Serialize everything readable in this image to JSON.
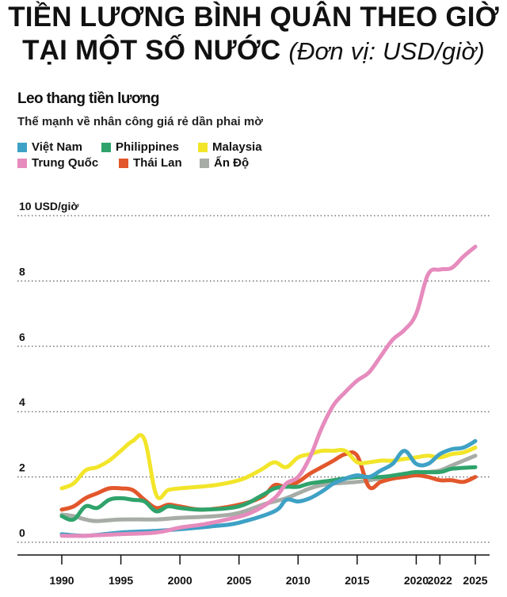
{
  "header": {
    "title_line1": "TIỀN LƯƠNG BÌNH QUÂN THEO GIỜ",
    "title_line2": "TẠI MỘT SỐ NƯỚC",
    "title_unit": "(Đơn vị: USD/giờ)"
  },
  "subtitle": "Leo thang tiền lương",
  "caption": "Thế mạnh về nhân công giá rẻ dần phai mờ",
  "chart_data": {
    "type": "line",
    "title": "Leo thang tiền lương",
    "subtitle": "Thế mạnh về nhân công giá rẻ dần phai mờ",
    "ylabel": "10 USD/giờ",
    "ylim": [
      0,
      10
    ],
    "xlim": [
      1990,
      2025
    ],
    "x_ticks": [
      "1990",
      "1995",
      "2000",
      "2005",
      "2010",
      "2015",
      "2020",
      "2022",
      "2025"
    ],
    "y_ticks": [
      "10 USD/giờ",
      "8",
      "6",
      "4",
      "2",
      "0"
    ],
    "grid": "horizontal dotted",
    "legend_position": "top-left",
    "series": [
      {
        "name": "Việt Nam",
        "color": "#3ea1c5",
        "x": [
          1990,
          1992,
          1995,
          1998,
          2000,
          2003,
          2005,
          2008,
          2009,
          2010,
          2011,
          2012,
          2013,
          2014,
          2015,
          2016,
          2017,
          2018,
          2019,
          2020,
          2021,
          2022,
          2023,
          2024,
          2025
        ],
        "y": [
          0.25,
          0.2,
          0.3,
          0.35,
          0.4,
          0.5,
          0.6,
          0.95,
          1.3,
          1.25,
          1.35,
          1.55,
          1.8,
          1.95,
          2.05,
          2.0,
          2.2,
          2.4,
          2.8,
          2.4,
          2.4,
          2.7,
          2.85,
          2.9,
          3.1
        ]
      },
      {
        "name": "Philippines",
        "color": "#2fa36b",
        "x": [
          1990,
          1991,
          1992,
          1993,
          1994,
          1995,
          1996,
          1997,
          1998,
          1999,
          2000,
          2002,
          2005,
          2007,
          2008,
          2009,
          2010,
          2011,
          2013,
          2015,
          2017,
          2019,
          2020,
          2022,
          2023,
          2025
        ],
        "y": [
          0.8,
          0.7,
          1.1,
          1.05,
          1.3,
          1.35,
          1.3,
          1.25,
          0.95,
          1.1,
          1.05,
          1.0,
          1.1,
          1.45,
          1.65,
          1.7,
          1.7,
          1.8,
          1.9,
          2.0,
          2.0,
          2.1,
          2.15,
          2.15,
          2.25,
          2.3
        ]
      },
      {
        "name": "Malaysia",
        "color": "#f2e52a",
        "x": [
          1990,
          1991,
          1992,
          1993,
          1994,
          1995,
          1996,
          1997,
          1998,
          1999,
          2000,
          2003,
          2005,
          2006,
          2007,
          2008,
          2009,
          2010,
          2011,
          2012,
          2013,
          2014,
          2015,
          2016,
          2017,
          2018,
          2019,
          2020,
          2021,
          2022,
          2023,
          2024,
          2025
        ],
        "y": [
          1.65,
          1.8,
          2.2,
          2.3,
          2.5,
          2.8,
          3.1,
          3.15,
          1.45,
          1.6,
          1.65,
          1.75,
          1.9,
          2.05,
          2.25,
          2.45,
          2.3,
          2.6,
          2.7,
          2.8,
          2.8,
          2.8,
          2.45,
          2.45,
          2.5,
          2.5,
          2.55,
          2.6,
          2.65,
          2.6,
          2.7,
          2.75,
          2.9
        ]
      },
      {
        "name": "Trung Quốc",
        "color": "#e68bbd",
        "x": [
          1990,
          1992,
          1995,
          1998,
          2000,
          2002,
          2004,
          2006,
          2008,
          2009,
          2010,
          2011,
          2012,
          2013,
          2014,
          2015,
          2016,
          2017,
          2018,
          2019,
          2020,
          2021,
          2022,
          2023,
          2024,
          2025
        ],
        "y": [
          0.2,
          0.2,
          0.25,
          0.3,
          0.45,
          0.55,
          0.7,
          0.9,
          1.35,
          1.8,
          2.0,
          2.6,
          3.5,
          4.2,
          4.6,
          4.95,
          5.2,
          5.7,
          6.2,
          6.5,
          7.0,
          8.2,
          8.35,
          8.4,
          8.75,
          9.05
        ]
      },
      {
        "name": "Thái Lan",
        "color": "#e2572b",
        "x": [
          1990,
          1991,
          1992,
          1993,
          1994,
          1995,
          1996,
          1997,
          1998,
          1999,
          2000,
          2002,
          2005,
          2007,
          2008,
          2009,
          2010,
          2011,
          2012,
          2013,
          2014,
          2015,
          2016,
          2017,
          2018,
          2019,
          2020,
          2021,
          2022,
          2023,
          2024,
          2025
        ],
        "y": [
          1.0,
          1.1,
          1.35,
          1.5,
          1.65,
          1.65,
          1.6,
          1.3,
          1.05,
          1.15,
          1.1,
          1.0,
          1.15,
          1.4,
          1.75,
          1.7,
          1.85,
          2.1,
          2.3,
          2.5,
          2.7,
          2.65,
          1.7,
          1.85,
          1.95,
          2.0,
          2.05,
          2.0,
          1.9,
          1.9,
          1.85,
          2.0
        ]
      },
      {
        "name": "Ấn Độ",
        "color": "#a7ada6",
        "x": [
          1990,
          1991,
          1992,
          1993,
          1995,
          1998,
          2000,
          2003,
          2005,
          2007,
          2008,
          2009,
          2010,
          2011,
          2012,
          2013,
          2015,
          2017,
          2019,
          2020,
          2021,
          2022,
          2023,
          2024,
          2025
        ],
        "y": [
          0.85,
          0.8,
          0.7,
          0.65,
          0.7,
          0.7,
          0.75,
          0.8,
          0.9,
          1.15,
          1.25,
          1.35,
          1.5,
          1.65,
          1.75,
          1.8,
          1.85,
          1.95,
          2.05,
          2.1,
          2.15,
          2.2,
          2.35,
          2.5,
          2.65
        ]
      }
    ]
  }
}
